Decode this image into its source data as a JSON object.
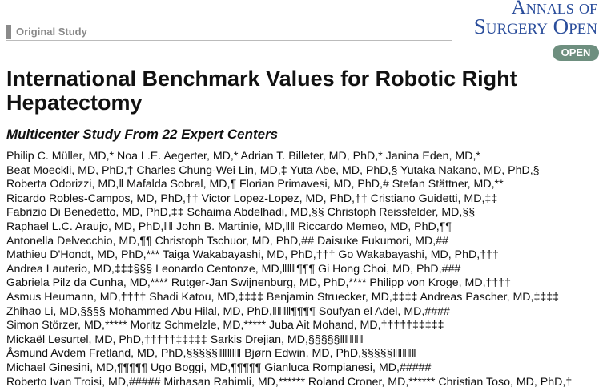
{
  "header": {
    "section": "Original Study",
    "journal_line1": "Annals of",
    "journal_line2": "Surgery Open",
    "badge": "OPEN"
  },
  "title": "International Benchmark Values for Robotic Right Hepatectomy",
  "subtitle": "Multicenter Study From 22 Expert Centers",
  "authors": [
    "Philip C. Müller, MD,* Noa L.E. Aegerter, MD,* Adrian T. Billeter, MD, PhD,* Janina Eden, MD,*",
    "Beat Moeckli, MD, PhD,† Charles Chung-Wei Lin, MD,‡ Yuta Abe, MD, PhD,§ Yutaka Nakano, MD, PhD,§",
    "Roberta Odorizzi, MD,‖ Mafalda Sobral, MD,¶ Florian Primavesi, MD, PhD,# Stefan Stättner, MD,**",
    "Ricardo Robles-Campos, MD, PhD,†† Victor Lopez-Lopez, MD, PhD,†† Cristiano Guidetti, MD,‡‡",
    "Fabrizio Di Benedetto, MD, PhD,‡‡ Schaima Abdelhadi, MD,§§ Christoph Reissfelder, MD,§§",
    "Raphael L.C. Araujo, MD, PhD,‖‖ John B. Martinie, MD,‖‖ Riccardo Memeo, MD, PhD,¶¶",
    "Antonella Delvecchio, MD,¶¶ Christoph Tschuor, MD, PhD,## Daisuke Fukumori, MD,##",
    "Mathieu D'Hondt, MD, PhD,*** Taiga Wakabayashi, MD, PhD,††† Go Wakabayashi, MD, PhD,†††",
    "Andrea Lauterio, MD,‡‡‡§§§ Leonardo Centonze, MD,‖‖‖¶¶¶ Gi Hong Choi, MD, PhD,###",
    "Gabriela Pilz da Cunha, MD,**** Rutger-Jan Swijnenburg, MD, PhD,**** Philipp von Kroge, MD,††††",
    "Asmus Heumann, MD,†††† Shadi Katou, MD,‡‡‡‡ Benjamin Struecker, MD,‡‡‡‡ Andreas Pascher, MD,‡‡‡‡",
    "Zhihao Li, MD,§§§§ Mohammed Abu Hilal, MD, PhD,‖‖‖‖¶¶¶¶ Soufyan el Adel, MD,####",
    "Simon Störzer, MD,***** Moritz Schmelzle, MD,***** Juba Ait Mohand, MD,†††††‡‡‡‡‡",
    "Mickaël Lesurtel, MD, PhD,†††††‡‡‡‡‡ Sarkis Drejian, MD,§§§§§‖‖‖‖‖",
    "Åsmund Avdem Fretland, MD, PhD,§§§§§‖‖‖‖‖ Bjørn Edwin, MD, PhD,§§§§§‖‖‖‖‖",
    "Michael Ginesini, MD,¶¶¶¶¶ Ugo Boggi, MD,¶¶¶¶¶ Gianluca Rompianesi, MD,#####",
    "Roberto Ivan Troisi, MD,##### Mirhasan Rahimli, MD,****** Roland Croner, MD,****** Christian Toso, MD, PhD,†"
  ]
}
